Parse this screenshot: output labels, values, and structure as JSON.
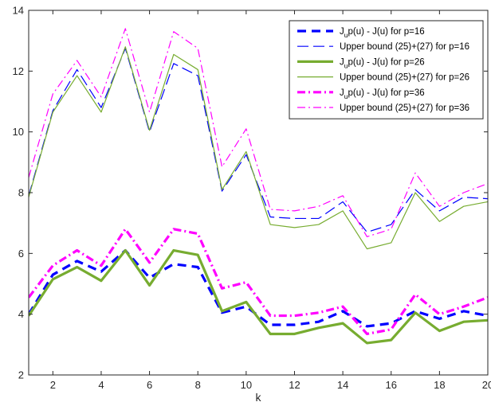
{
  "chart_data": {
    "type": "line",
    "title": "",
    "xlabel": "k",
    "ylabel": "",
    "xlim": [
      1,
      20
    ],
    "ylim": [
      2,
      14
    ],
    "xticks": [
      2,
      4,
      6,
      8,
      10,
      12,
      14,
      16,
      18,
      20
    ],
    "yticks": [
      2,
      4,
      6,
      8,
      10,
      12,
      14
    ],
    "grid": false,
    "legend_position": "top-right",
    "x": [
      1,
      2,
      3,
      4,
      5,
      6,
      7,
      8,
      9,
      10,
      11,
      12,
      13,
      14,
      15,
      16,
      17,
      18,
      19,
      20
    ],
    "series": [
      {
        "name_main": "J",
        "name_sub": "u",
        "name_rest": "p(u) - J(u) for p=16",
        "color": "#0000ff",
        "style": "dashed",
        "width": "thick",
        "values": [
          4.0,
          5.3,
          5.75,
          5.4,
          6.1,
          5.2,
          5.65,
          5.55,
          4.05,
          4.25,
          3.65,
          3.65,
          3.75,
          4.1,
          3.6,
          3.7,
          4.1,
          3.85,
          4.1,
          3.95
        ]
      },
      {
        "name": "Upper bound (25)+(27) for p=16",
        "color": "#0000ff",
        "style": "longdash",
        "width": "thin",
        "values": [
          7.9,
          10.7,
          12.05,
          10.8,
          12.75,
          10.0,
          12.25,
          11.85,
          8.05,
          9.25,
          7.2,
          7.15,
          7.15,
          7.7,
          6.7,
          6.95,
          8.1,
          7.4,
          7.85,
          7.8
        ]
      },
      {
        "name_main": "J",
        "name_sub": "u",
        "name_rest": "p(u) - J(u) for p=26",
        "color": "#77ac30",
        "style": "solid",
        "width": "thick",
        "values": [
          3.95,
          5.15,
          5.55,
          5.1,
          6.1,
          4.95,
          6.1,
          5.95,
          4.1,
          4.4,
          3.35,
          3.35,
          3.55,
          3.7,
          3.05,
          3.15,
          4.05,
          3.45,
          3.75,
          3.8
        ]
      },
      {
        "name": "Upper bound (25)+(27) for p=26",
        "color": "#77ac30",
        "style": "solid",
        "width": "thin",
        "values": [
          7.85,
          10.65,
          11.85,
          10.65,
          12.8,
          10.05,
          12.55,
          12.05,
          8.1,
          9.35,
          6.95,
          6.85,
          6.95,
          7.4,
          6.15,
          6.35,
          8.0,
          7.05,
          7.55,
          7.7
        ]
      },
      {
        "name": "J_up(u) - J(u) for p=36",
        "name_main": "J",
        "name_sub": "u",
        "name_rest": "p(u) - J(u) for p=36",
        "color": "#ff00ff",
        "style": "dashdot",
        "width": "thick",
        "values": [
          4.55,
          5.6,
          6.1,
          5.6,
          6.8,
          5.7,
          6.8,
          6.65,
          4.85,
          5.05,
          3.95,
          3.95,
          4.05,
          4.25,
          3.35,
          3.5,
          4.65,
          4.0,
          4.25,
          4.55
        ]
      },
      {
        "name": "Upper bound (25)+(27) for p=36",
        "color": "#ff00ff",
        "style": "dashdot",
        "width": "thin",
        "values": [
          8.5,
          11.25,
          12.35,
          11.15,
          13.4,
          10.65,
          13.3,
          12.75,
          8.85,
          10.1,
          7.45,
          7.4,
          7.55,
          7.9,
          6.55,
          6.8,
          8.65,
          7.55,
          8.0,
          8.3
        ]
      }
    ]
  }
}
